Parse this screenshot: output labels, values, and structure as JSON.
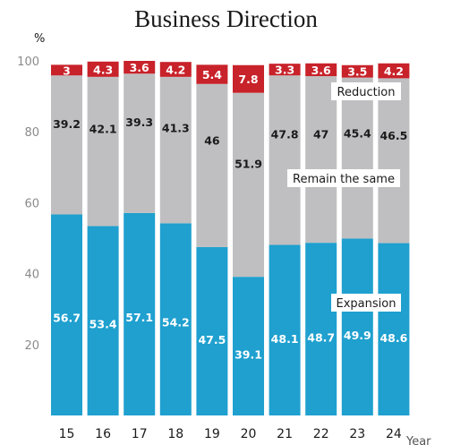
{
  "chart_data": {
    "type": "bar",
    "stacked": true,
    "title": "Business Direction",
    "y_unit": "%",
    "xlabel": "Year",
    "ylim": [
      0,
      100
    ],
    "y_ticks": [
      20,
      40,
      60,
      80,
      100
    ],
    "categories": [
      "15",
      "16",
      "17",
      "18",
      "19",
      "20",
      "21",
      "22",
      "23",
      "24"
    ],
    "series": [
      {
        "name": "Expansion",
        "color": "#1fa0cf",
        "label_color": "#ffffff",
        "values": [
          56.7,
          53.4,
          57.1,
          54.2,
          47.5,
          39.1,
          48.1,
          48.7,
          49.9,
          48.6
        ]
      },
      {
        "name": "Remain the same",
        "color": "#bfbfc1",
        "label_color": "#1a1a1a",
        "values": [
          39.2,
          42.1,
          39.3,
          41.3,
          46,
          51.9,
          47.8,
          47,
          45.4,
          46.5
        ]
      },
      {
        "name": "Reduction",
        "color": "#c8222a",
        "label_color": "#ffffff",
        "values": [
          3,
          4.3,
          3.6,
          4.2,
          5.4,
          7.8,
          3.3,
          3.6,
          3.5,
          4.2
        ]
      }
    ]
  }
}
